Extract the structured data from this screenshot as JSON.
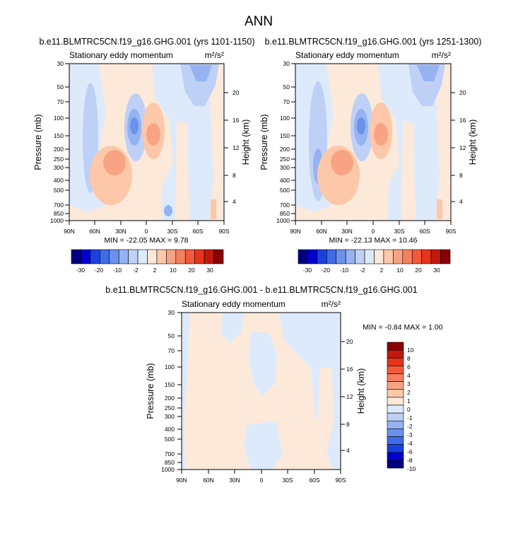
{
  "page_title": "ANN",
  "panel_a": {
    "title": "b.e11.BLMTRC5CN.f19_g16.GHG.001 (yrs 1101-1150)",
    "left_string": "Stationary eddy momentum",
    "units": "m²/s²",
    "minmax": "MIN = -22.05   MAX =   9.78"
  },
  "panel_b": {
    "title": "b.e11.BLMTRC5CN.f19_g16.GHG.001 (yrs 1251-1300)",
    "left_string": "Stationary eddy momentum",
    "units": "m²/s²",
    "minmax": "MIN = -22.13   MAX =  10.46"
  },
  "panel_c": {
    "title": "b.e11.BLMTRC5CN.f19_g16.GHG.001 - b.e11.BLMTRC5CN.f19_g16.GHG.001",
    "left_string": "Stationary eddy momentum",
    "units": "m²/s²",
    "minmax": "MIN =  -0.84   MAX =   1.00"
  },
  "axes": {
    "ylabel": "Pressure (mb)",
    "ylabel_right": "Height (km)"
  },
  "colors": {
    "main_levels": [
      "#000080",
      "#0000cd",
      "#1a41e0",
      "#3f6be6",
      "#6a92ec",
      "#95b3f1",
      "#bfd0f6",
      "#ddeafb",
      "#fde9da",
      "#fcc8a9",
      "#f8a484",
      "#f57f5f",
      "#f25a3b",
      "#e5341a",
      "#bf1a0d",
      "#8b0000"
    ],
    "diff_levels": [
      "#000080",
      "#0000cd",
      "#1a41e0",
      "#3f6be6",
      "#6a92ec",
      "#95b3f1",
      "#bfd0f6",
      "#ddeafb",
      "#fde9da",
      "#fcc8a9",
      "#f8a484",
      "#f57f5f",
      "#f25a3b",
      "#e5341a",
      "#bf1a0d",
      "#8b0000"
    ]
  },
  "chart_data": [
    {
      "type": "heatmap",
      "title": "b.e11.BLMTRC5CN.f19_g16.GHG.001 (yrs 1101-1150)",
      "subtitle": "Stationary eddy momentum",
      "units": "m2/s2",
      "xlabel": "",
      "ylabel": "Pressure (mb)",
      "ylabel_right": "Height (km)",
      "x_ticks": [
        "90N",
        "60N",
        "30N",
        "0",
        "30S",
        "60S",
        "90S"
      ],
      "y_ticks": [
        30,
        50,
        70,
        100,
        150,
        200,
        250,
        300,
        400,
        500,
        700,
        850,
        1000
      ],
      "y_ticks_right": [
        4,
        8,
        12,
        16,
        20
      ],
      "ylim": [
        1000,
        30
      ],
      "min": -22.05,
      "max": 9.78,
      "colorbar_labels": [
        "-30",
        "-20",
        "-10",
        "-2",
        "2",
        "10",
        "20",
        "30"
      ],
      "features": [
        {
          "lat": 13,
          "p": 150,
          "value": -18
        },
        {
          "lat": -8,
          "p": 150,
          "value": 9
        },
        {
          "lat": 32,
          "p": 260,
          "value": 8
        },
        {
          "lat": 55,
          "p": 160,
          "value": -5
        },
        {
          "lat": -55,
          "p": 45,
          "value": -12
        },
        {
          "lat": -75,
          "p": 800,
          "value": 4
        }
      ]
    },
    {
      "type": "heatmap",
      "title": "b.e11.BLMTRC5CN.f19_g16.GHG.001 (yrs 1251-1300)",
      "subtitle": "Stationary eddy momentum",
      "units": "m2/s2",
      "xlabel": "",
      "ylabel": "Pressure (mb)",
      "ylabel_right": "Height (km)",
      "x_ticks": [
        "90N",
        "60N",
        "30N",
        "0",
        "30S",
        "60S",
        "90S"
      ],
      "y_ticks": [
        30,
        50,
        70,
        100,
        150,
        200,
        250,
        300,
        400,
        500,
        700,
        850,
        1000
      ],
      "y_ticks_right": [
        4,
        8,
        12,
        16,
        20
      ],
      "ylim": [
        1000,
        30
      ],
      "min": -22.13,
      "max": 10.46,
      "colorbar_labels": [
        "-30",
        "-20",
        "-10",
        "-2",
        "2",
        "10",
        "20",
        "30"
      ],
      "features": [
        {
          "lat": 13,
          "p": 150,
          "value": -18
        },
        {
          "lat": -8,
          "p": 150,
          "value": 10
        },
        {
          "lat": 32,
          "p": 260,
          "value": 8
        },
        {
          "lat": 62,
          "p": 250,
          "value": -12
        },
        {
          "lat": -55,
          "p": 45,
          "value": -12
        },
        {
          "lat": -75,
          "p": 800,
          "value": 4
        }
      ]
    },
    {
      "type": "heatmap",
      "title": "b.e11.BLMTRC5CN.f19_g16.GHG.001 - b.e11.BLMTRC5CN.f19_g16.GHG.001",
      "subtitle": "Stationary eddy momentum",
      "units": "m2/s2",
      "xlabel": "",
      "ylabel": "Pressure (mb)",
      "ylabel_right": "Height (km)",
      "x_ticks": [
        "90N",
        "60N",
        "30N",
        "0",
        "30S",
        "60S",
        "90S"
      ],
      "y_ticks": [
        30,
        50,
        70,
        100,
        150,
        200,
        250,
        300,
        400,
        500,
        700,
        850,
        1000
      ],
      "y_ticks_right": [
        4,
        8,
        12,
        16,
        20
      ],
      "ylim": [
        1000,
        30
      ],
      "min": -0.84,
      "max": 1.0,
      "colorbar_labels": [
        "10",
        "8",
        "6",
        "4",
        "3",
        "2",
        "1",
        "0",
        "-1",
        "-2",
        "-3",
        "-4",
        "-6",
        "-8",
        "-10"
      ],
      "features": [
        {
          "lat": 60,
          "p": 150,
          "value": 0.5
        },
        {
          "lat": -10,
          "p": 150,
          "value": -0.5
        },
        {
          "lat": -60,
          "p": 70,
          "value": -0.5
        }
      ]
    }
  ]
}
